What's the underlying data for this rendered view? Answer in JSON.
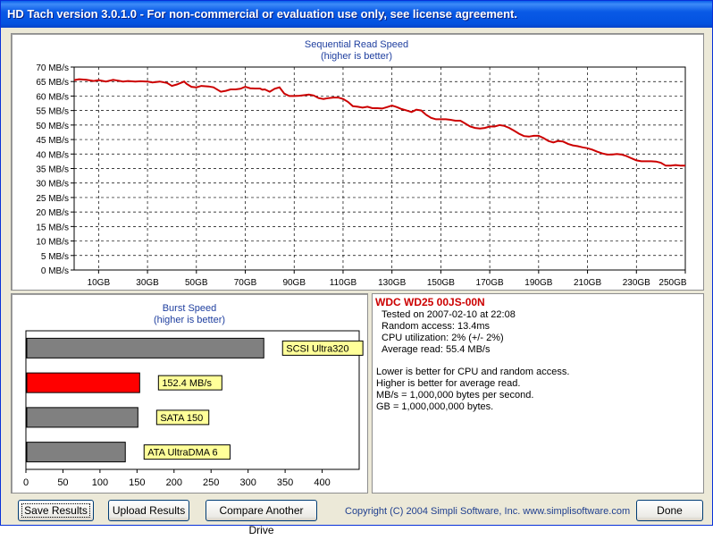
{
  "window": {
    "title": "HD Tach version 3.0.1.0  - For non-commercial or evaluation use only, see license agreement."
  },
  "colors": {
    "read_line": "#CC0000",
    "burst_bar_highlight": "#FF0000",
    "burst_bar": "#808080",
    "bar_label_bg": "#FFFF99",
    "title_blue": "#1F3F9F"
  },
  "chart_data": [
    {
      "type": "line",
      "title": "Sequential Read Speed",
      "subtitle": "(higher is better)",
      "y_unit": "MB/s",
      "ylim": [
        0,
        70
      ],
      "yticks": [
        "70 MB/s",
        "65 MB/s",
        "60 MB/s",
        "55 MB/s",
        "50 MB/s",
        "45 MB/s",
        "40 MB/s",
        "35 MB/s",
        "30 MB/s",
        "25 MB/s",
        "20 MB/s",
        "15 MB/s",
        "10 MB/s",
        "5 MB/s",
        "0 MB/s"
      ],
      "xlim": [
        0,
        250
      ],
      "xticks": [
        "10GB",
        "30GB",
        "50GB",
        "70GB",
        "90GB",
        "110GB",
        "130GB",
        "150GB",
        "170GB",
        "190GB",
        "210GB",
        "230GB",
        "250GB"
      ],
      "grid": true,
      "x": [
        0,
        2,
        5,
        8,
        10,
        13,
        16,
        18,
        20,
        22,
        25,
        27,
        30,
        32,
        35,
        38,
        40,
        42,
        45,
        46,
        48,
        50,
        52,
        55,
        57,
        58,
        60,
        62,
        64,
        66,
        68,
        70,
        72,
        74,
        76,
        77,
        78,
        80,
        82,
        84,
        86,
        88,
        90,
        92,
        94,
        96,
        98,
        100,
        102,
        104,
        106,
        108,
        110,
        112,
        114,
        116,
        118,
        120,
        122,
        124,
        126,
        128,
        130,
        132,
        134,
        136,
        138,
        140,
        142,
        144,
        146,
        148,
        150,
        152,
        154,
        156,
        158,
        160,
        162,
        164,
        166,
        168,
        170,
        172,
        174,
        176,
        178,
        180,
        182,
        184,
        186,
        188,
        190,
        192,
        194,
        196,
        198,
        200,
        202,
        204,
        206,
        208,
        210,
        212,
        214,
        216,
        218,
        220,
        222,
        224,
        226,
        228,
        230,
        232,
        234,
        236,
        238,
        240,
        242,
        244,
        246,
        248,
        250
      ],
      "y": [
        65.5,
        65.8,
        65.6,
        65.2,
        65.5,
        65.0,
        65.6,
        65.3,
        65.0,
        65.2,
        65.0,
        65.1,
        65.0,
        64.7,
        65.0,
        64.5,
        63.5,
        64.0,
        65.0,
        64.2,
        63.2,
        63.0,
        63.5,
        63.3,
        63.0,
        62.5,
        61.5,
        61.8,
        62.3,
        62.3,
        62.5,
        63.2,
        62.7,
        62.6,
        62.6,
        62.2,
        62.3,
        61.5,
        62.5,
        63.0,
        60.8,
        60.0,
        60.0,
        60.1,
        60.3,
        60.5,
        60.2,
        59.3,
        59.0,
        59.3,
        59.5,
        59.5,
        59.0,
        58.0,
        56.5,
        56.3,
        56.0,
        56.3,
        55.8,
        55.8,
        55.7,
        56.2,
        56.7,
        56.2,
        55.5,
        55.0,
        54.5,
        55.3,
        55.0,
        53.5,
        52.5,
        52.0,
        52.0,
        52.0,
        51.8,
        51.5,
        51.5,
        50.5,
        49.5,
        49.0,
        48.8,
        49.0,
        49.5,
        49.5,
        50.0,
        49.7,
        49.0,
        48.0,
        47.0,
        46.2,
        46.0,
        46.3,
        46.3,
        45.5,
        44.5,
        44.0,
        44.5,
        44.3,
        43.5,
        43.0,
        42.7,
        42.3,
        42.0,
        41.5,
        40.8,
        40.2,
        39.8,
        39.8,
        40.0,
        39.8,
        39.3,
        38.5,
        37.8,
        37.5,
        37.5,
        37.5,
        37.4,
        37.0,
        36.0,
        36.0,
        36.2,
        36.0,
        36.0
      ]
    },
    {
      "type": "bar",
      "orientation": "horizontal",
      "title": "Burst Speed",
      "subtitle": "(higher is better)",
      "xlim": [
        0,
        450
      ],
      "xticks": [
        "0",
        "50",
        "100",
        "150",
        "200",
        "250",
        "300",
        "350",
        "400"
      ],
      "grid": false,
      "bars": [
        {
          "label": "SCSI Ultra320",
          "value": 320,
          "highlight": false
        },
        {
          "label": "152.4 MB/s",
          "value": 152.4,
          "highlight": true
        },
        {
          "label": "SATA 150",
          "value": 150,
          "highlight": false
        },
        {
          "label": "ATA UltraDMA 6",
          "value": 133,
          "highlight": false
        }
      ]
    }
  ],
  "info": {
    "drive_name": "WDC WD25 00JS-00N",
    "tested_on": "Tested on 2007-02-10 at 22:08",
    "random_access": "Random access: 13.4ms",
    "cpu_utilization": "CPU utilization: 2% (+/- 2%)",
    "average_read": "Average read: 55.4 MB/s",
    "note_cpu": "Lower is better for CPU and random access.",
    "note_read": "Higher is better for average read.",
    "note_mbs": "MB/s = 1,000,000 bytes per second.",
    "note_gb": "GB = 1,000,000,000 bytes."
  },
  "buttons": {
    "save": "Save Results",
    "upload": "Upload Results",
    "compare": "Compare Another Drive",
    "done": "Done"
  },
  "footer": {
    "copyright": "Copyright (C) 2004 Simpli Software, Inc. www.simplisoftware.com"
  }
}
